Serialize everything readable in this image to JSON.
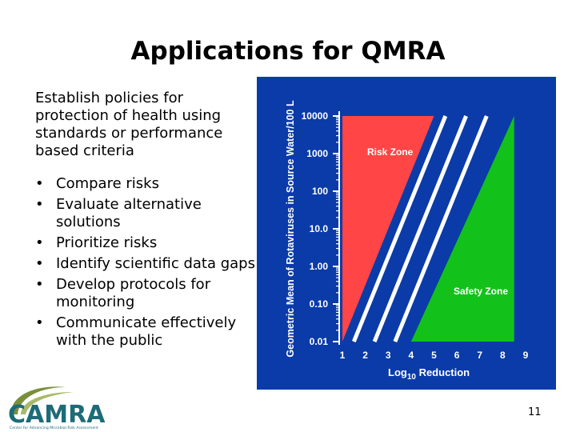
{
  "slide": {
    "title": "Applications for QMRA",
    "intro": "Establish policies for protection of health using standards or performance based criteria",
    "bullets": [
      "Compare risks",
      "Evaluate alternative solutions",
      "Prioritize risks",
      "Identify scientific data gaps",
      "Develop protocols for monitoring",
      "Communicate effectively with the public"
    ],
    "bullet_glyph": "•",
    "page_number": "11"
  },
  "logo": {
    "name": "CAMRA",
    "tagline": "Center for Advancing Microbial Risk Assessment"
  },
  "chart_data": {
    "type": "area",
    "xlabel_main": "Log",
    "xlabel_sub": "10",
    "xlabel_rest": "Reduction",
    "ylabel": "Geometric Mean of Rotaviruses in Source Water/100 L",
    "x_ticks": [
      "1",
      "2",
      "3",
      "4",
      "5",
      "6",
      "7",
      "8",
      "9"
    ],
    "y_ticks": [
      "0.01",
      "0.10",
      "1.00",
      "10.0",
      "100",
      "1000",
      "10000"
    ],
    "xlim": [
      1,
      9
    ],
    "ylim_log10": [
      -2,
      4
    ],
    "log_scale_y": true,
    "zones": [
      {
        "name": "Risk Zone",
        "color": "#ff4545",
        "boundary": {
          "x": [
            1,
            5
          ],
          "y": [
            0.01,
            10000
          ]
        }
      },
      {
        "name": "Safety Zone",
        "color": "#12c21a",
        "boundary": {
          "x": [
            4,
            8.5
          ],
          "y": [
            0.01,
            10000
          ]
        }
      }
    ],
    "colors": {
      "background": "#0b3ba8",
      "stripe": "#ffffff",
      "text": "#ffffff"
    }
  }
}
